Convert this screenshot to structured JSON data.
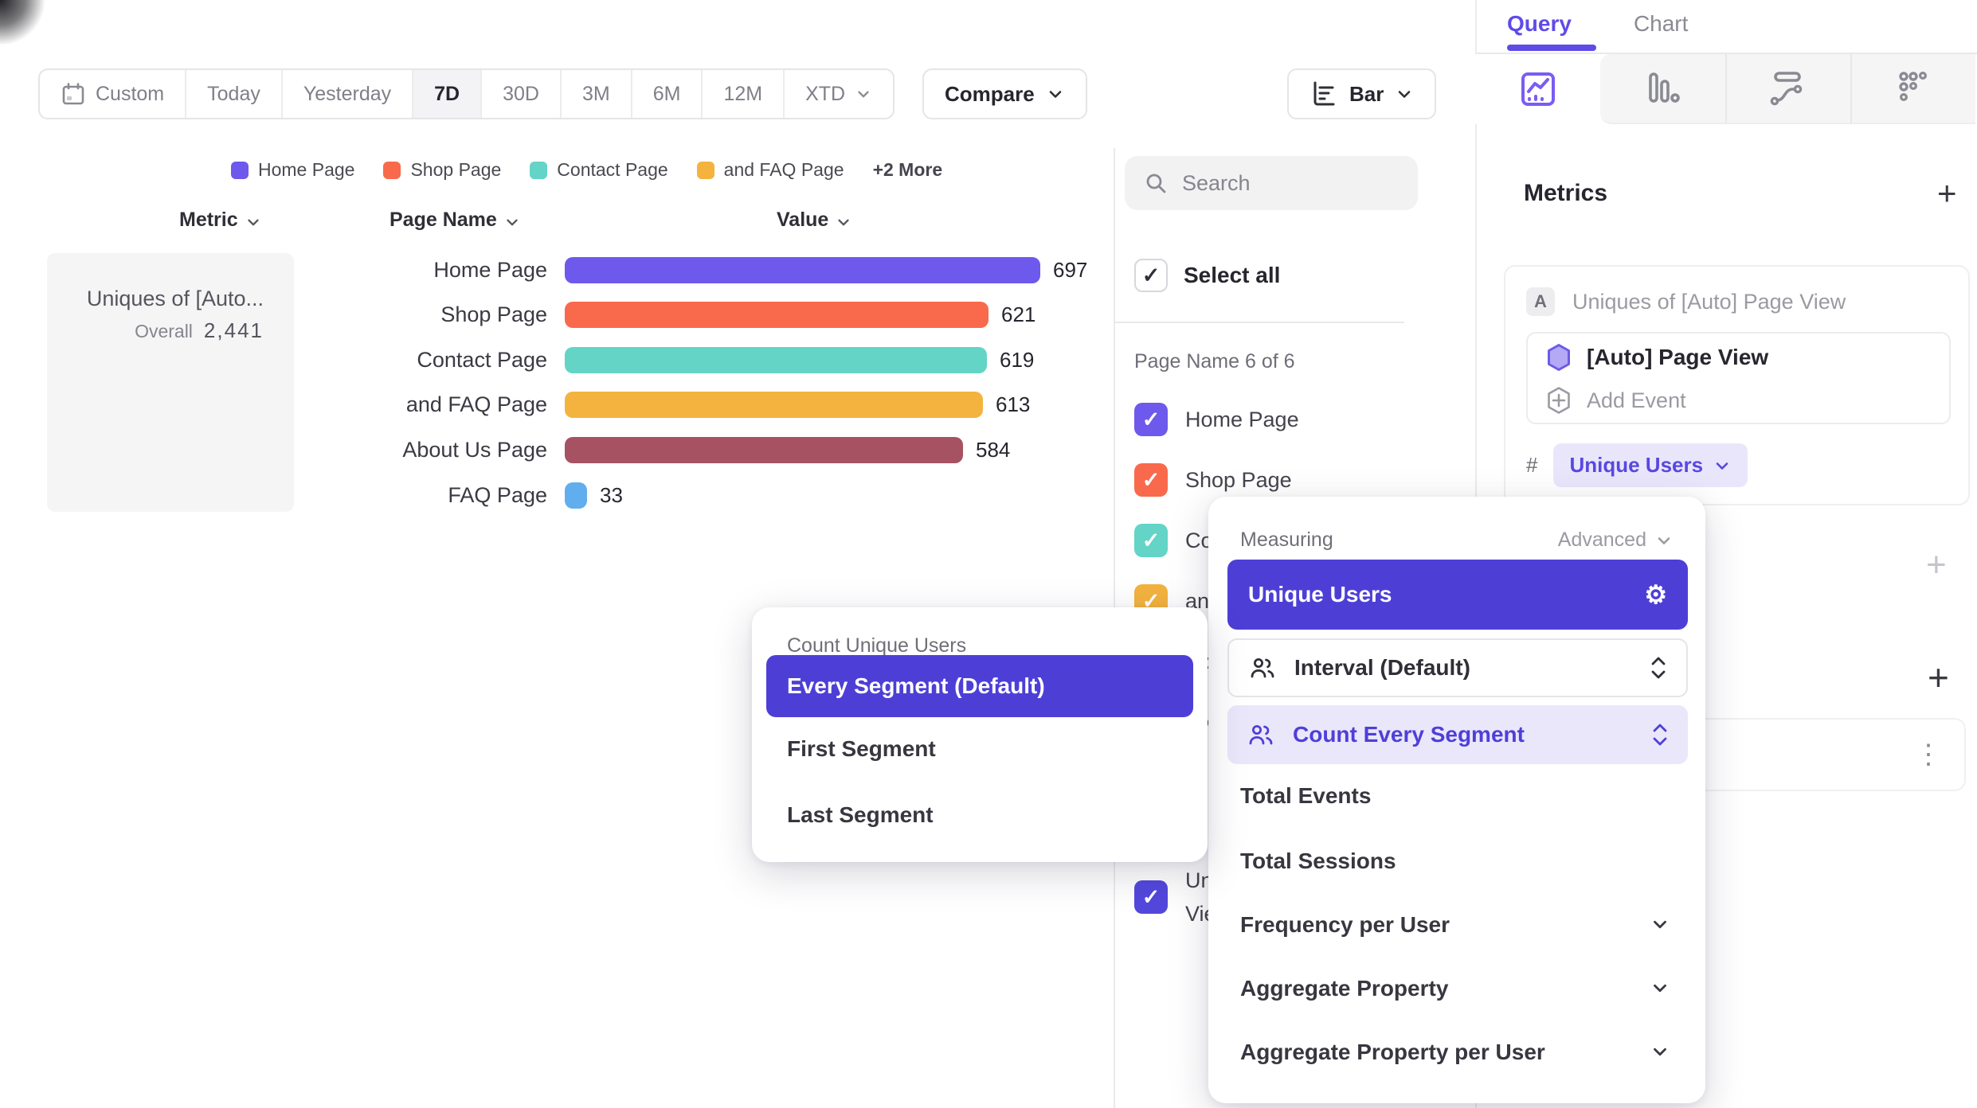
{
  "toolbar": {
    "date_ranges": [
      "Custom",
      "Today",
      "Yesterday",
      "7D",
      "30D",
      "3M",
      "6M",
      "12M",
      "XTD"
    ],
    "active_range": "7D",
    "compare_label": "Compare",
    "chart_type_label": "Bar"
  },
  "legend": {
    "items": [
      {
        "label": "Home Page",
        "color": "#6d59ec"
      },
      {
        "label": "Shop Page",
        "color": "#f96a4c"
      },
      {
        "label": "Contact Page",
        "color": "#63d4c6"
      },
      {
        "label": "and FAQ Page",
        "color": "#f3b33e"
      }
    ],
    "more": "+2 More"
  },
  "table": {
    "headers": [
      "Metric",
      "Page Name",
      "Value"
    ]
  },
  "metric_card": {
    "title": "Uniques of [Auto...",
    "overall_label": "Overall",
    "overall_value": "2,441"
  },
  "chart_data": {
    "type": "bar",
    "orientation": "horizontal",
    "title": "Uniques of [Auto] Page View",
    "categories": [
      "Home Page",
      "Shop Page",
      "Contact Page",
      "and FAQ Page",
      "About Us Page",
      "FAQ Page"
    ],
    "values": [
      697,
      621,
      619,
      613,
      584,
      33
    ],
    "colors": [
      "#6d59ec",
      "#f96a4c",
      "#63d4c6",
      "#f3b33e",
      "#a75263",
      "#61aeee"
    ],
    "xmax": 697,
    "overall_total": "2,441",
    "legend_position": "top",
    "grid": false
  },
  "filter_panel": {
    "search_placeholder": "Search",
    "select_all_label": "Select all",
    "group_label": "Page Name 6 of 6",
    "items": [
      {
        "label": "Home Page",
        "color": "#6d59ec",
        "checked": true
      },
      {
        "label": "Shop Page",
        "color": "#f96a4c",
        "checked": true
      },
      {
        "label": "Contact Page",
        "color": "#63d4c6",
        "checked": true
      },
      {
        "label": "and FAQ Page",
        "color": "#f3b33e",
        "checked": true
      },
      {
        "label": "About Us Page",
        "color": "#a75263",
        "checked": true
      },
      {
        "label": "FAQ Page",
        "color": "#61aeee",
        "checked": true
      }
    ],
    "extra_item": {
      "lines": [
        "Uniques of [Auto] Page",
        "View"
      ],
      "color": "#5348dc",
      "checked": true
    }
  },
  "query_panel": {
    "tabs": [
      "Query",
      "Chart"
    ],
    "active_tab": "Query",
    "chart_type_tabs": [
      "insights",
      "bar-chart",
      "flows",
      "retention"
    ],
    "metrics_heading": "Metrics",
    "add_metric_label": "+",
    "metric_badge": "A",
    "metric_title": "Uniques of [Auto] Page View",
    "event_name": "[Auto] Page View",
    "add_event_label": "Add Event",
    "hash_prefix": "#",
    "measure_pill": "Unique Users",
    "filter_plus": "+",
    "breakdown_plus": "+",
    "more_dots": "⋮"
  },
  "measuring_popup": {
    "title": "Measuring",
    "advanced_label": "Advanced",
    "selected": "Unique Users",
    "interval_label": "Interval (Default)",
    "count_label": "Count Every Segment",
    "plain_items": [
      "Total Events",
      "Total Sessions"
    ],
    "expandable_items": [
      "Frequency per User",
      "Aggregate Property",
      "Aggregate Property per User"
    ]
  },
  "count_popup": {
    "title": "Count Unique Users",
    "selected": "Every Segment (Default)",
    "options": [
      "First Segment",
      "Last Segment"
    ]
  },
  "colors": {
    "accent_purple": "#5f4be8",
    "selected_purple": "#4d3fd6",
    "pill_bg": "#e9e6fc",
    "muted_text": "#8b8b94",
    "dark_text": "#2f2f37",
    "border": "#e7e7ea",
    "strip_bg": "#f5f5f6"
  },
  "icons": {
    "custom_range": "calendar-icon",
    "dropdowns": "chevron-down-icon",
    "chart_type_button": "horizontal-bars-icon",
    "search": "search-icon",
    "measure_settings": "gear-icon",
    "segment_rows": "people-icon",
    "row_selector": "updown-stepper-icon",
    "event": "hexagon-icon",
    "add_event": "hexagon-plus-icon",
    "more": "vertical-dots-icon",
    "add": "plus-icon"
  }
}
